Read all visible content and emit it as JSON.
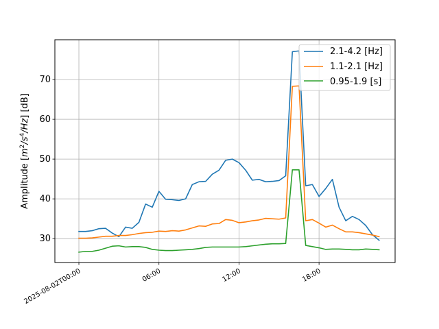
{
  "chart_data": {
    "type": "line",
    "title": "",
    "xlabel": "",
    "ylabel_parts": {
      "prefix": "Amplitude [",
      "unit_m": "m",
      "exp_m": "2",
      "unit_mid": "/s",
      "exp_s": "4",
      "unit_end": "/Hz",
      "suffix": "] [dB]"
    },
    "x_unit": "hours since 2025-08-02T00:00",
    "xlim": [
      -1.8,
      23.7
    ],
    "ylim": [
      24,
      80
    ],
    "grid": true,
    "legend_position": "top-right",
    "x_ticks": [
      {
        "value": 0,
        "label": "2025-08-02T00:00",
        "rotation": -30
      },
      {
        "value": 6,
        "label": "06:00",
        "rotation": -30
      },
      {
        "value": 12,
        "label": "12:00",
        "rotation": -30
      },
      {
        "value": 18,
        "label": "18:00",
        "rotation": -30
      }
    ],
    "y_ticks": [
      {
        "value": 30,
        "label": "30"
      },
      {
        "value": 40,
        "label": "40"
      },
      {
        "value": 50,
        "label": "50"
      },
      {
        "value": 60,
        "label": "60"
      },
      {
        "value": 70,
        "label": "70"
      }
    ],
    "x": [
      0,
      0.5,
      1,
      1.5,
      2,
      2.5,
      3,
      3.5,
      4,
      4.5,
      5,
      5.5,
      6,
      6.5,
      7,
      7.5,
      8,
      8.5,
      9,
      9.5,
      10,
      10.5,
      11,
      11.5,
      12,
      12.5,
      13,
      13.5,
      14,
      14.5,
      15,
      15.5,
      16,
      16.5,
      17,
      17.5,
      18,
      18.5,
      19,
      19.5,
      20,
      20.5,
      21,
      21.5,
      22,
      22.5
    ],
    "series": [
      {
        "name": "2.1-4.2 [Hz]",
        "color": "#1f77b4",
        "values": [
          31.8,
          31.8,
          32.0,
          32.5,
          32.6,
          31.4,
          30.5,
          32.9,
          32.6,
          34.1,
          38.7,
          37.9,
          41.9,
          39.9,
          39.8,
          39.6,
          40.0,
          43.6,
          44.3,
          44.4,
          46.2,
          47.2,
          49.7,
          50.0,
          49.1,
          47.2,
          44.7,
          44.9,
          44.3,
          44.4,
          44.6,
          45.8,
          77.0,
          77.2,
          43.3,
          43.6,
          40.6,
          42.6,
          44.9,
          37.9,
          34.5,
          35.6,
          34.8,
          33.3,
          31.0,
          29.6
        ]
      },
      {
        "name": "1.1-2.1 [Hz]",
        "color": "#ff7f0e",
        "values": [
          30.1,
          30.1,
          30.2,
          30.4,
          30.6,
          30.6,
          30.8,
          30.8,
          31.0,
          31.3,
          31.5,
          31.6,
          31.9,
          31.8,
          32.0,
          31.9,
          32.2,
          32.7,
          33.2,
          33.1,
          33.7,
          33.8,
          34.8,
          34.6,
          34.0,
          34.2,
          34.5,
          34.7,
          35.1,
          35.0,
          34.9,
          35.2,
          68.3,
          68.4,
          34.5,
          34.8,
          33.9,
          32.9,
          33.4,
          32.5,
          31.7,
          31.7,
          31.5,
          31.2,
          30.9,
          30.5
        ]
      },
      {
        "name": "0.95-1.9 [s]",
        "color": "#2ca02c",
        "values": [
          26.6,
          26.8,
          26.8,
          27.1,
          27.6,
          28.1,
          28.2,
          27.9,
          28.0,
          28.0,
          27.8,
          27.3,
          27.1,
          27.0,
          27.0,
          27.1,
          27.2,
          27.3,
          27.5,
          27.8,
          27.9,
          27.9,
          27.9,
          27.9,
          27.9,
          28.0,
          28.2,
          28.4,
          28.6,
          28.7,
          28.7,
          28.8,
          47.3,
          47.3,
          28.3,
          28.0,
          27.7,
          27.3,
          27.4,
          27.4,
          27.3,
          27.2,
          27.2,
          27.4,
          27.3,
          27.2
        ]
      }
    ]
  }
}
